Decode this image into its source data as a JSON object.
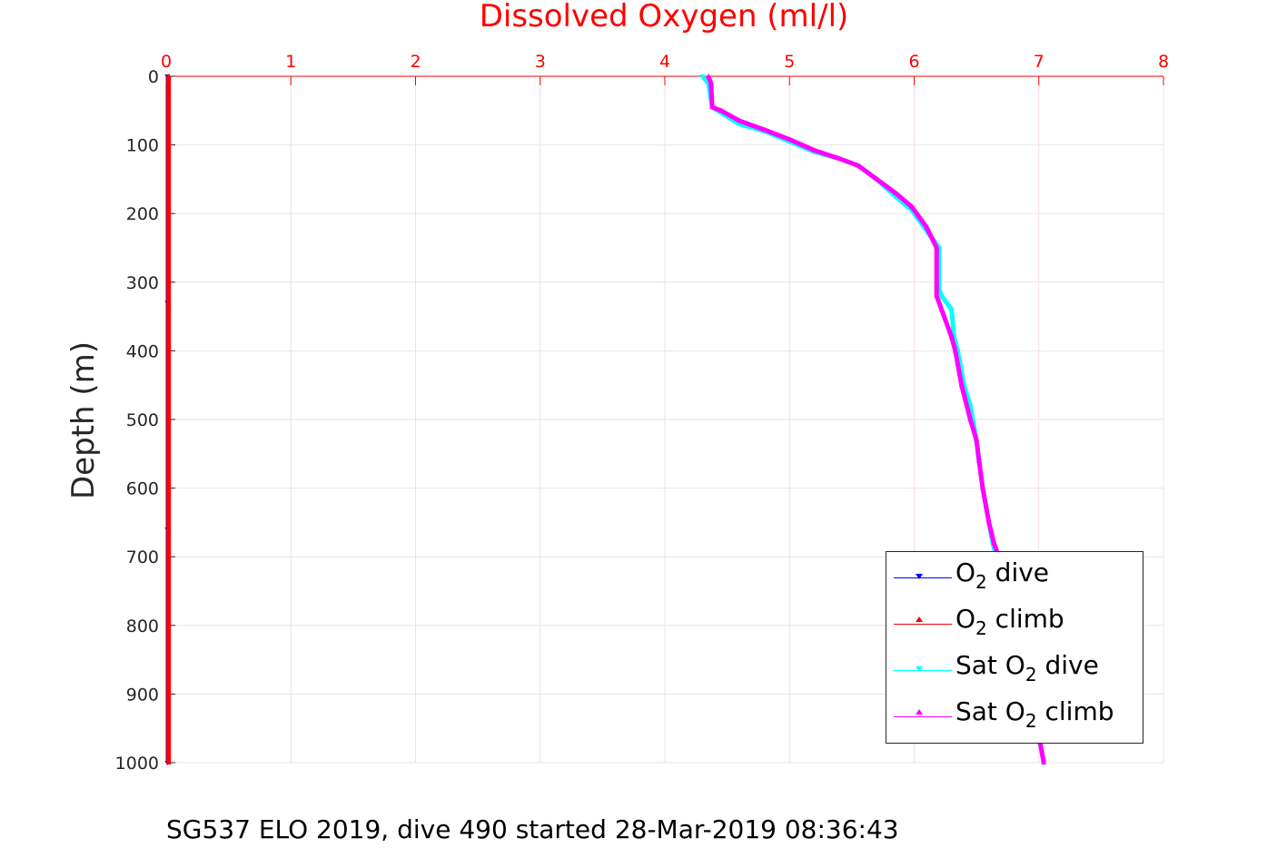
{
  "chart_data": {
    "type": "line",
    "title": "Dissolved Oxygen (ml/l)",
    "ylabel": "Depth (m)",
    "caption": "SG537 ELO 2019, dive 490 started 28-Mar-2019 08:36:43",
    "xlim": [
      0,
      8
    ],
    "ylim": [
      0,
      1000
    ],
    "y_reversed": true,
    "x_axis_position": "top",
    "grid": true,
    "x_ticks": [
      0,
      1,
      2,
      3,
      4,
      5,
      6,
      7,
      8
    ],
    "y_ticks": [
      0,
      100,
      200,
      300,
      400,
      500,
      600,
      700,
      800,
      900,
      1000
    ],
    "legend_position": "bottom-right",
    "series": [
      {
        "name": "O2 dive",
        "color": "#0000ff",
        "marker": "down-triangle",
        "x": [
          0.01,
          0.01,
          0.01,
          0.01
        ],
        "y": [
          0,
          330,
          660,
          1000
        ]
      },
      {
        "name": "O2 climb",
        "color": "#ff0000",
        "marker": "up-triangle",
        "x": [
          0.02,
          0.02,
          0.02,
          0.02
        ],
        "y": [
          0,
          330,
          660,
          1000
        ]
      },
      {
        "name": "Sat O2 dive",
        "color": "#00ffff",
        "marker": "down-triangle",
        "x": [
          4.3,
          4.35,
          4.38,
          4.6,
          4.8,
          5.0,
          5.2,
          5.4,
          5.55,
          5.7,
          5.85,
          5.98,
          6.1,
          6.2,
          6.2,
          6.22,
          6.3,
          6.32,
          6.35,
          6.4,
          6.45,
          6.5,
          6.52,
          6.55,
          6.6,
          6.63,
          6.66,
          6.72,
          6.8,
          6.88,
          6.95,
          7.01,
          7.04
        ],
        "y": [
          0,
          10,
          45,
          70,
          80,
          95,
          110,
          120,
          130,
          150,
          175,
          195,
          225,
          250,
          310,
          320,
          340,
          380,
          400,
          450,
          480,
          530,
          560,
          600,
          650,
          680,
          700,
          740,
          800,
          860,
          920,
          970,
          1000
        ]
      },
      {
        "name": "Sat O2 climb",
        "color": "#ff00ff",
        "marker": "up-triangle",
        "x": [
          4.35,
          4.37,
          4.38,
          4.45,
          4.6,
          4.8,
          5.0,
          5.2,
          5.4,
          5.55,
          5.7,
          5.85,
          5.98,
          6.1,
          6.18,
          6.18,
          6.22,
          6.3,
          6.33,
          6.38,
          6.45,
          6.5,
          6.52,
          6.55,
          6.6,
          6.64,
          6.68,
          6.72,
          6.8,
          6.88,
          6.95,
          7.01,
          7.04
        ],
        "y": [
          0,
          10,
          45,
          50,
          65,
          78,
          92,
          108,
          120,
          130,
          150,
          170,
          190,
          220,
          250,
          320,
          340,
          380,
          400,
          450,
          500,
          530,
          560,
          600,
          650,
          680,
          700,
          740,
          800,
          860,
          920,
          970,
          1000
        ]
      }
    ]
  },
  "legend": {
    "items": [
      {
        "pre": "O",
        "sub": "2",
        "post": " dive",
        "color": "#0000ff",
        "marker": "down"
      },
      {
        "pre": "O",
        "sub": "2",
        "post": " climb",
        "color": "#ff0000",
        "marker": "up"
      },
      {
        "pre": "Sat O",
        "sub": "2",
        "post": " dive",
        "color": "#00ffff",
        "marker": "down"
      },
      {
        "pre": "Sat O",
        "sub": "2",
        "post": " climb",
        "color": "#ff00ff",
        "marker": "up"
      }
    ]
  }
}
